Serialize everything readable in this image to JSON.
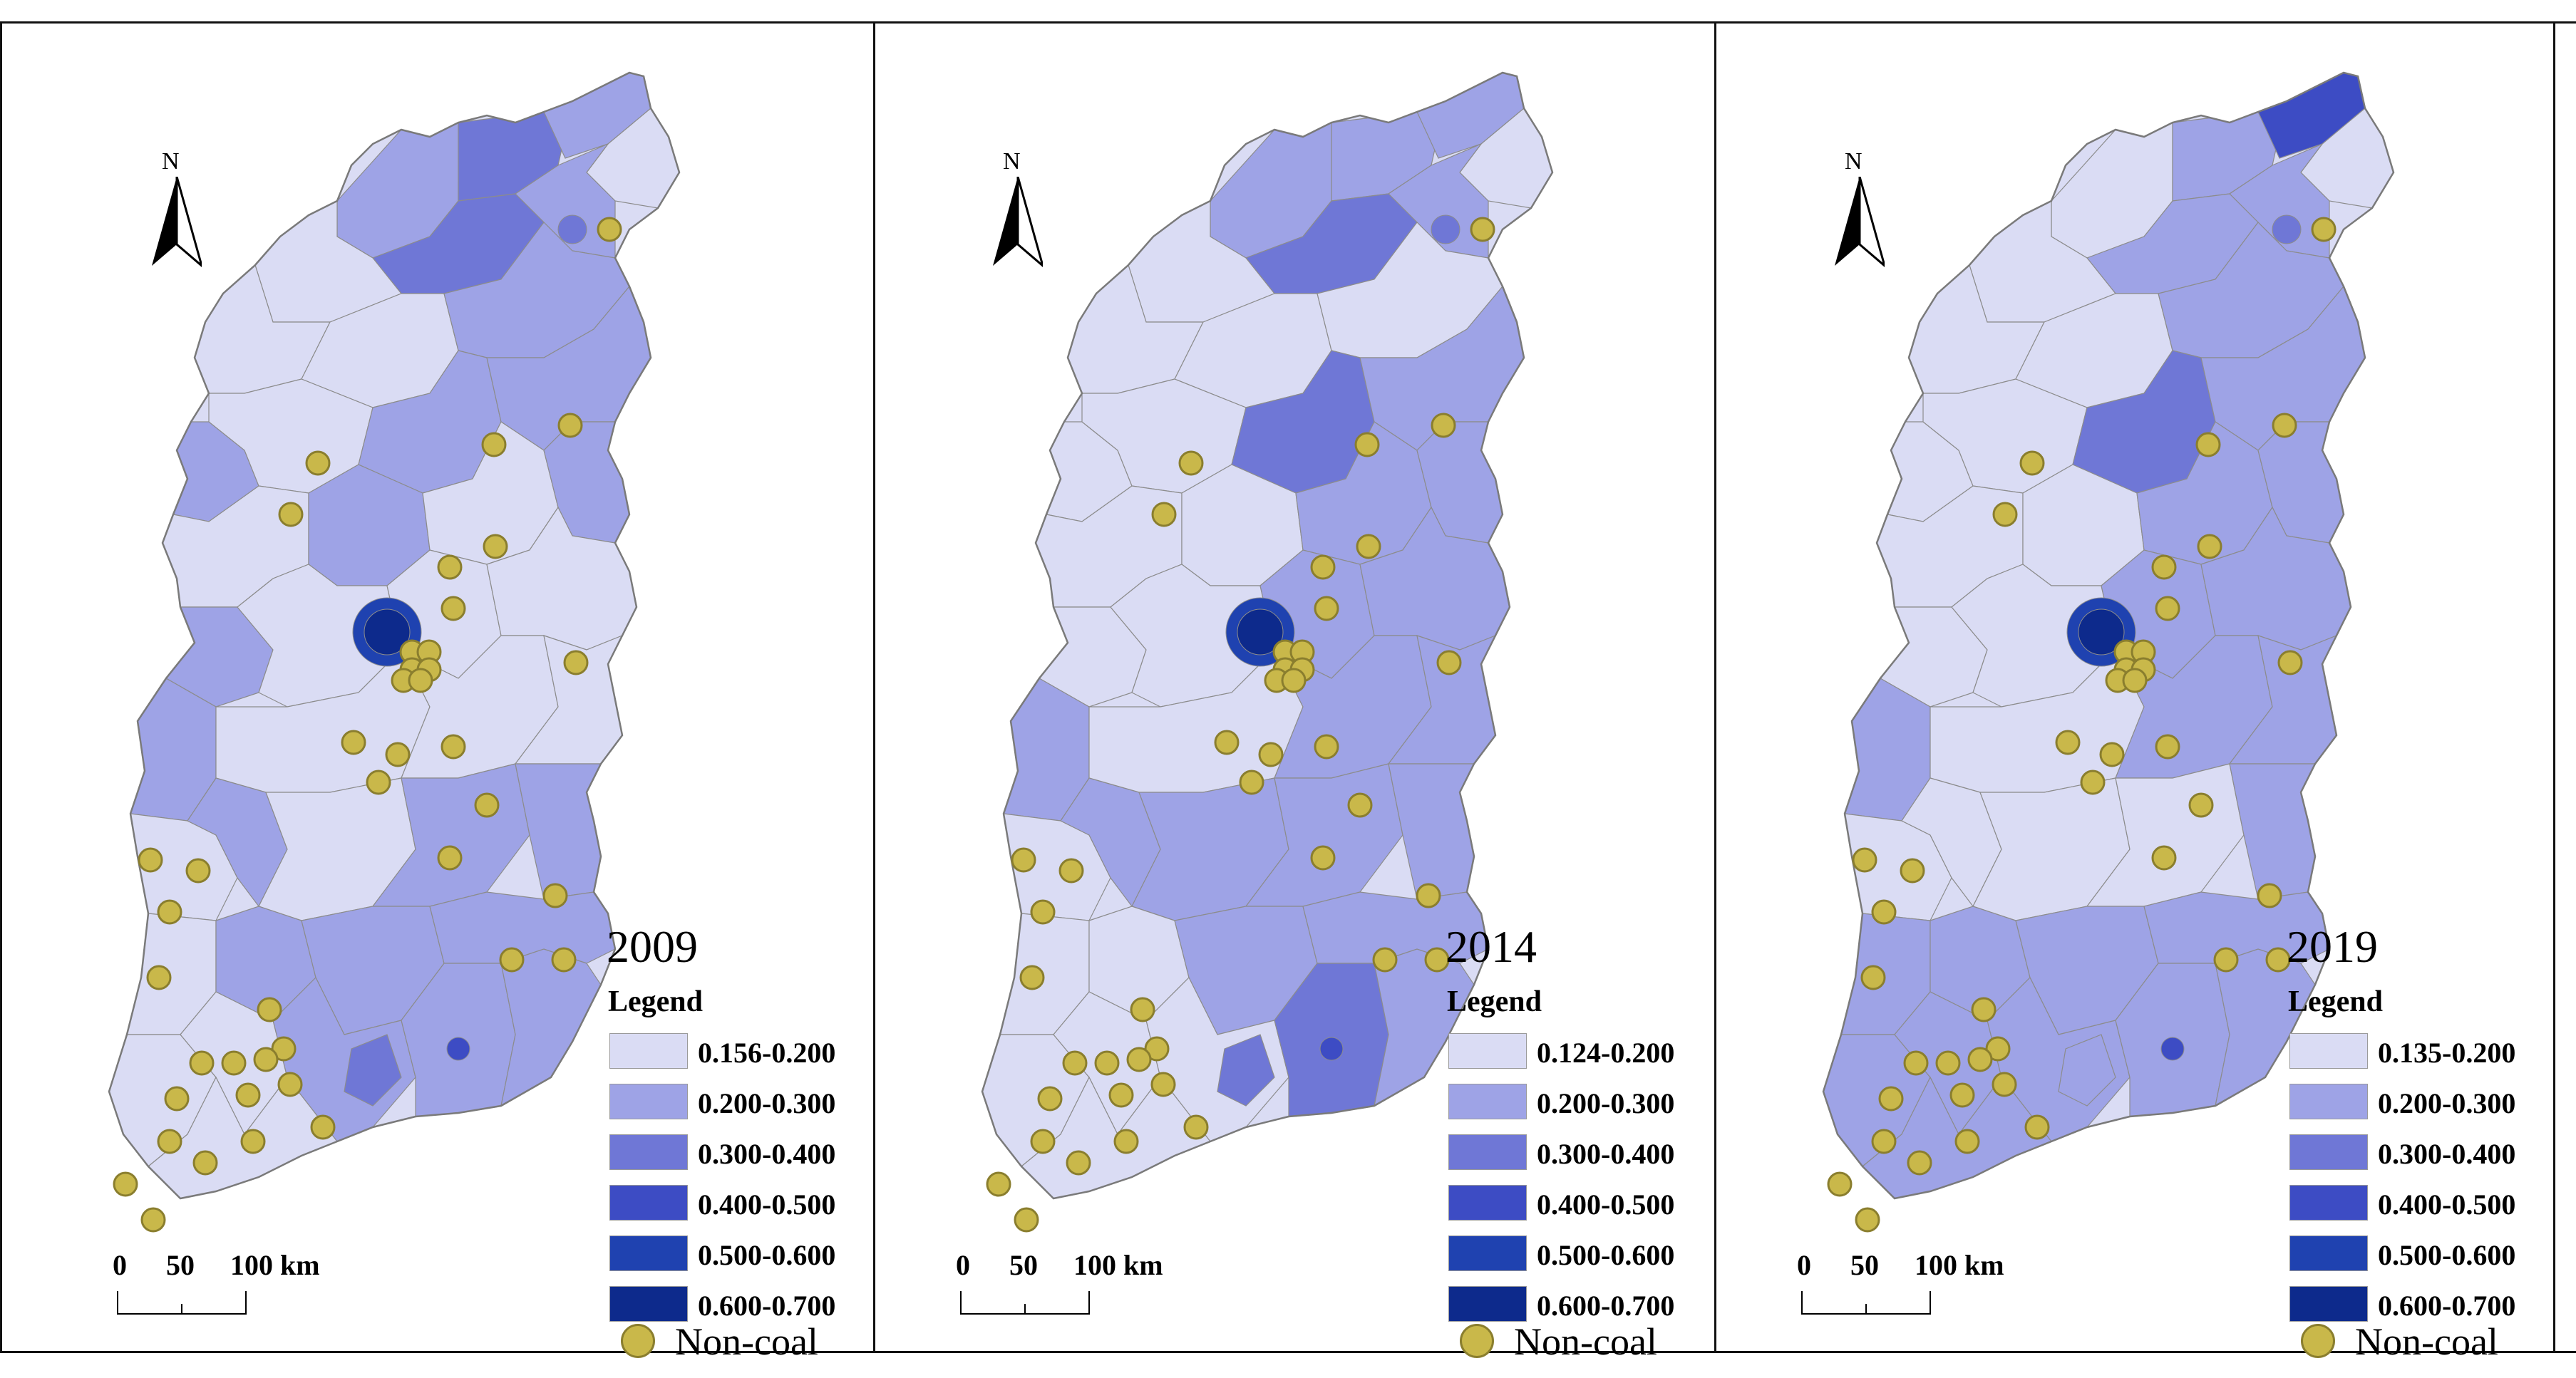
{
  "figure": {
    "description_free": true,
    "colors": {
      "class_1": "#dadcf4",
      "class_2": "#9ea3e6",
      "class_3": "#6f77d6",
      "class_4": "#3d4cc4",
      "class_5": "#1f42b0",
      "class_6": "#0d2a8c",
      "noncoal_fill": "#c9b84a",
      "noncoal_stroke": "#8a7e2e",
      "boundary": "#8c8c8c"
    }
  },
  "panels": [
    {
      "year": "2009",
      "legend_title": "Legend",
      "legend": [
        {
          "label": "0.156-0.200",
          "color": "#dadcf4"
        },
        {
          "label": "0.200-0.300",
          "color": "#9ea3e6"
        },
        {
          "label": "0.300-0.400",
          "color": "#6f77d6"
        },
        {
          "label": "0.400-0.500",
          "color": "#3d4cc4"
        },
        {
          "label": "0.500-0.600",
          "color": "#1f42b0"
        },
        {
          "label": "0.600-0.700",
          "color": "#0d2a8c"
        }
      ],
      "noncoal_label": "Non-coal",
      "north_label": "N",
      "scale": {
        "tick_0": "0",
        "tick_50": "50",
        "tick_100": "100 km"
      }
    },
    {
      "year": "2014",
      "legend_title": "Legend",
      "legend": [
        {
          "label": "0.124-0.200",
          "color": "#dadcf4"
        },
        {
          "label": "0.200-0.300",
          "color": "#9ea3e6"
        },
        {
          "label": "0.300-0.400",
          "color": "#6f77d6"
        },
        {
          "label": "0.400-0.500",
          "color": "#3d4cc4"
        },
        {
          "label": "0.500-0.600",
          "color": "#1f42b0"
        },
        {
          "label": "0.600-0.700",
          "color": "#0d2a8c"
        }
      ],
      "noncoal_label": "Non-coal",
      "north_label": "N",
      "scale": {
        "tick_0": "0",
        "tick_50": "50",
        "tick_100": "100 km"
      }
    },
    {
      "year": "2019",
      "legend_title": "Legend",
      "legend": [
        {
          "label": "0.135-0.200",
          "color": "#dadcf4"
        },
        {
          "label": "0.200-0.300",
          "color": "#9ea3e6"
        },
        {
          "label": "0.300-0.400",
          "color": "#6f77d6"
        },
        {
          "label": "0.400-0.500",
          "color": "#3d4cc4"
        },
        {
          "label": "0.500-0.600",
          "color": "#1f42b0"
        },
        {
          "label": "0.600-0.700",
          "color": "#0d2a8c"
        }
      ],
      "noncoal_label": "Non-coal",
      "north_label": "N",
      "scale": {
        "tick_0": "0",
        "tick_50": "50",
        "tick_100": "100 km"
      }
    }
  ]
}
